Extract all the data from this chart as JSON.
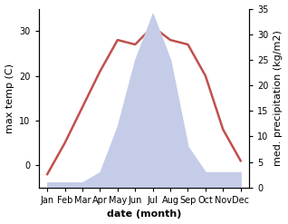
{
  "months": [
    "Jan",
    "Feb",
    "Mar",
    "Apr",
    "May",
    "Jun",
    "Jul",
    "Aug",
    "Sep",
    "Oct",
    "Nov",
    "Dec"
  ],
  "temperature": [
    -2,
    5,
    13,
    21,
    28,
    27,
    31,
    28,
    27,
    20,
    8,
    1
  ],
  "precipitation": [
    1,
    1,
    1,
    3,
    12,
    25,
    34,
    25,
    8,
    3,
    3,
    3
  ],
  "temp_color": "#c0504d",
  "precip_fill_color": "#c5cce8",
  "ylabel_left": "max temp (C)",
  "ylabel_right": "med. precipitation (kg/m2)",
  "xlabel": "date (month)",
  "ylim_left": [
    -5,
    35
  ],
  "ylim_right": [
    0,
    35
  ],
  "yticks_left": [
    0,
    10,
    20,
    30
  ],
  "yticks_right": [
    0,
    5,
    10,
    15,
    20,
    25,
    30,
    35
  ],
  "bg_color": "#ffffff",
  "line_width": 1.8,
  "label_fontsize": 8,
  "tick_fontsize": 7
}
